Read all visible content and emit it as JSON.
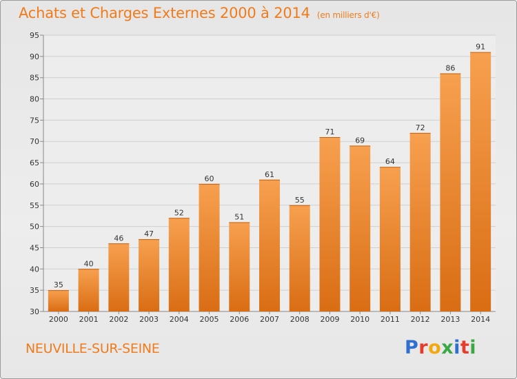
{
  "header": {
    "title": "Achats et Charges Externes 2000 à 2014",
    "unit": "(en milliers d'€)"
  },
  "footer": {
    "commune": "NEUVILLE-SUR-SEINE",
    "logo": "Proxiti",
    "logo_colors": [
      "#2f6fd0",
      "#e63c2b",
      "#f2a90f",
      "#3aa843",
      "#2f6fd0",
      "#e63c2b",
      "#3aa843"
    ]
  },
  "chart_data": {
    "type": "bar",
    "title": "Achats et Charges Externes 2000 à 2014",
    "subtitle": "(en milliers d'€)",
    "xlabel": "",
    "ylabel": "",
    "categories": [
      "2000",
      "2001",
      "2002",
      "2003",
      "2004",
      "2005",
      "2006",
      "2007",
      "2008",
      "2009",
      "2010",
      "2011",
      "2012",
      "2013",
      "2014"
    ],
    "values": [
      35,
      40,
      46,
      47,
      52,
      60,
      51,
      61,
      55,
      71,
      69,
      64,
      72,
      86,
      91
    ],
    "ylim": [
      30,
      95
    ],
    "yticks": [
      30,
      35,
      40,
      45,
      50,
      55,
      60,
      65,
      70,
      75,
      80,
      85,
      90,
      95
    ],
    "grid": true,
    "bar_color_top": "#f7a04f",
    "bar_color_bottom": "#d96d14",
    "title_color": "#f07b1b"
  }
}
